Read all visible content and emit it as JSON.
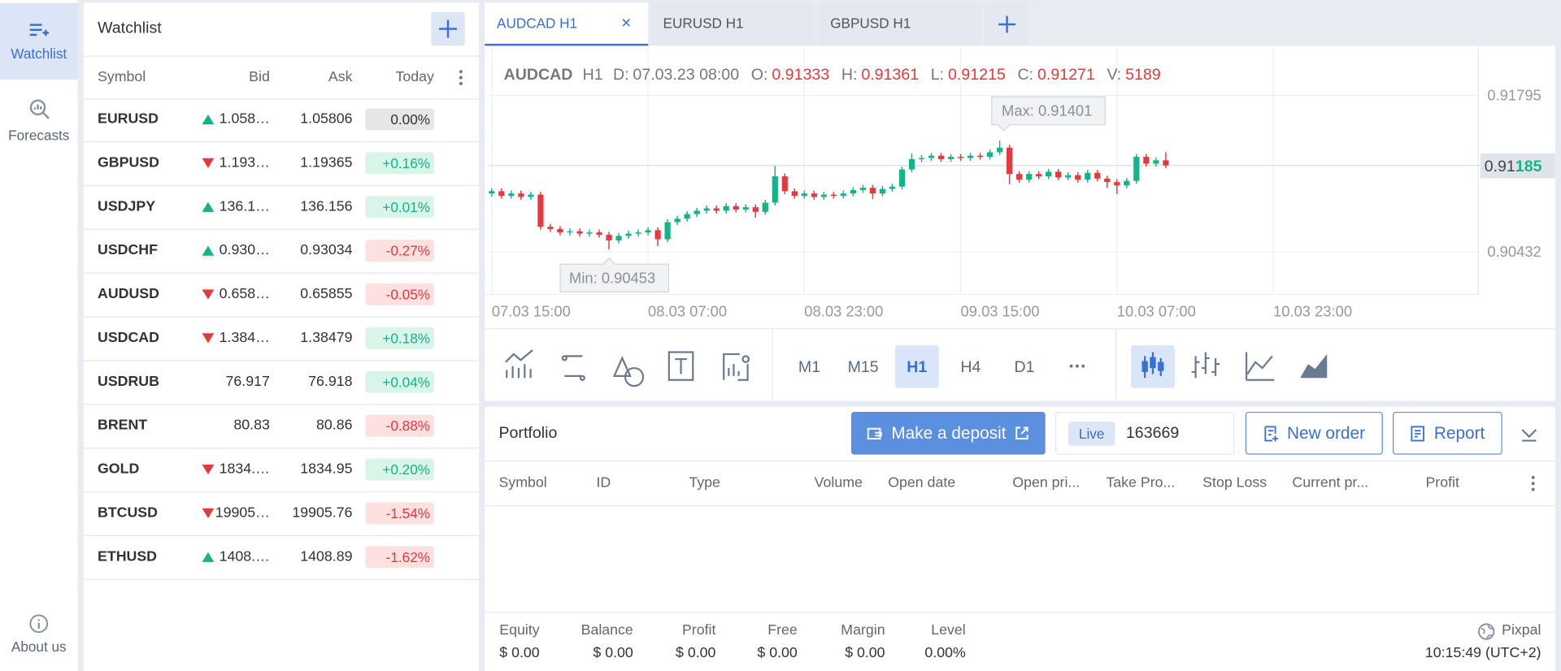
{
  "sidebar": {
    "items": [
      {
        "label": "Watchlist"
      },
      {
        "label": "Forecasts"
      },
      {
        "label": "About us"
      }
    ]
  },
  "watchlist": {
    "title": "Watchlist",
    "columns": [
      "Symbol",
      "Bid",
      "Ask",
      "Today"
    ],
    "rows": [
      {
        "symbol": "EURUSD",
        "tick": "up",
        "bid": "1.058…",
        "ask": "1.05806",
        "change": "0.00%",
        "trend": "flat"
      },
      {
        "symbol": "GBPUSD",
        "tick": "down",
        "bid": "1.193…",
        "ask": "1.19365",
        "change": "+0.16%",
        "trend": "up"
      },
      {
        "symbol": "USDJPY",
        "tick": "up",
        "bid": "136.1…",
        "ask": "136.156",
        "change": "+0.01%",
        "trend": "up"
      },
      {
        "symbol": "USDCHF",
        "tick": "up",
        "bid": "0.930…",
        "ask": "0.93034",
        "change": "-0.27%",
        "trend": "down"
      },
      {
        "symbol": "AUDUSD",
        "tick": "down",
        "bid": "0.658…",
        "ask": "0.65855",
        "change": "-0.05%",
        "trend": "down"
      },
      {
        "symbol": "USDCAD",
        "tick": "down",
        "bid": "1.384…",
        "ask": "1.38479",
        "change": "+0.18%",
        "trend": "up"
      },
      {
        "symbol": "USDRUB",
        "bid": "76.917",
        "ask": "76.918",
        "change": "+0.04%",
        "trend": "up"
      },
      {
        "symbol": "BRENT",
        "bid": "80.83",
        "ask": "80.86",
        "change": "-0.88%",
        "trend": "down"
      },
      {
        "symbol": "GOLD",
        "tick": "down",
        "bid": "1834.…",
        "ask": "1834.95",
        "change": "+0.20%",
        "trend": "up"
      },
      {
        "symbol": "BTCUSD",
        "tick": "down",
        "bid": "19905…",
        "ask": "19905.76",
        "change": "-1.54%",
        "trend": "down"
      },
      {
        "symbol": "ETHUSD",
        "tick": "up",
        "bid": "1408.…",
        "ask": "1408.89",
        "change": "-1.62%",
        "trend": "down"
      }
    ]
  },
  "tabs": {
    "items": [
      "AUDCAD H1",
      "EURUSD H1",
      "GBPUSD H1"
    ],
    "active": 0
  },
  "chart": {
    "type": "candlestick",
    "symbol": "AUDCAD",
    "timeframe": "H1",
    "info": [
      {
        "key": "D:",
        "value": "07.03.23 08:00"
      },
      {
        "key": "O:",
        "value": 0.91333
      },
      {
        "key": "H:",
        "value": 0.91361
      },
      {
        "key": "L:",
        "value": 0.91215
      },
      {
        "key": "C:",
        "value": 0.91271
      },
      {
        "key": "V:",
        "value": 5189
      }
    ],
    "xlim": [
      -0.3,
      101
    ],
    "ylim": [
      0.90059,
      0.92212
    ],
    "xticks": [
      {
        "value": 0,
        "label": "07.03 15:00"
      },
      {
        "value": 16,
        "label": "08.03 07:00"
      },
      {
        "value": 32,
        "label": "08.03 23:00"
      },
      {
        "value": 48,
        "label": "09.03 15:00"
      },
      {
        "value": 64,
        "label": "10.03 07:00"
      },
      {
        "value": 80,
        "label": "10.03 23:00"
      }
    ],
    "yticks": [
      0.91795,
      0.90432
    ],
    "max": {
      "value": 0.91401,
      "label": "Max: 0.91401"
    },
    "min": {
      "value": 0.90453,
      "label": "Min: 0.90453"
    },
    "current_price": {
      "value": 0.91185,
      "label": [
        "0.91",
        "185"
      ]
    },
    "up_color": "#16b38a",
    "down_color": "#e5393f",
    "candles": [
      [
        0.9094,
        0.90985,
        0.90915,
        0.9096
      ],
      [
        0.9096,
        0.90985,
        0.90895,
        0.9092
      ],
      [
        0.9092,
        0.90965,
        0.90895,
        0.9094
      ],
      [
        0.9094,
        0.90965,
        0.90885,
        0.9091
      ],
      [
        0.9091,
        0.90955,
        0.90885,
        0.9093
      ],
      [
        0.9093,
        0.90955,
        0.90625,
        0.9065
      ],
      [
        0.9065,
        0.90675,
        0.90605,
        0.9063
      ],
      [
        0.9063,
        0.90655,
        0.90575,
        0.906
      ],
      [
        0.906,
        0.90635,
        0.90575,
        0.9061
      ],
      [
        0.9061,
        0.90635,
        0.90565,
        0.9059
      ],
      [
        0.9059,
        0.90625,
        0.90565,
        0.906
      ],
      [
        0.906,
        0.90625,
        0.90555,
        0.9058
      ],
      [
        0.9058,
        0.90605,
        0.90453,
        0.9053
      ],
      [
        0.9053,
        0.90595,
        0.90505,
        0.9057
      ],
      [
        0.9057,
        0.90615,
        0.90545,
        0.9059
      ],
      [
        0.9059,
        0.90625,
        0.90565,
        0.906
      ],
      [
        0.906,
        0.90645,
        0.90575,
        0.9062
      ],
      [
        0.9062,
        0.90645,
        0.9048,
        0.9054
      ],
      [
        0.9054,
        0.90715,
        0.90515,
        0.9069
      ],
      [
        0.9069,
        0.90745,
        0.90665,
        0.9072
      ],
      [
        0.9072,
        0.90785,
        0.90695,
        0.9076
      ],
      [
        0.9076,
        0.90815,
        0.90735,
        0.9079
      ],
      [
        0.9079,
        0.90835,
        0.90765,
        0.9081
      ],
      [
        0.9081,
        0.90835,
        0.90765,
        0.9079
      ],
      [
        0.9079,
        0.90855,
        0.90765,
        0.9083
      ],
      [
        0.9083,
        0.90855,
        0.90775,
        0.908
      ],
      [
        0.908,
        0.90845,
        0.90775,
        0.9082
      ],
      [
        0.9082,
        0.90845,
        0.9073,
        0.9078
      ],
      [
        0.9078,
        0.90885,
        0.90755,
        0.9086
      ],
      [
        0.9086,
        0.9118,
        0.90835,
        0.9109
      ],
      [
        0.9109,
        0.91115,
        0.90935,
        0.9096
      ],
      [
        0.9096,
        0.90985,
        0.90895,
        0.9092
      ],
      [
        0.9092,
        0.90965,
        0.90895,
        0.9094
      ],
      [
        0.9094,
        0.90965,
        0.90885,
        0.9091
      ],
      [
        0.9091,
        0.90955,
        0.90885,
        0.9093
      ],
      [
        0.9093,
        0.90955,
        0.90895,
        0.9092
      ],
      [
        0.9092,
        0.90965,
        0.90895,
        0.9094
      ],
      [
        0.9094,
        0.90995,
        0.90915,
        0.9097
      ],
      [
        0.9097,
        0.91015,
        0.90945,
        0.9099
      ],
      [
        0.9099,
        0.91015,
        0.9089,
        0.9094
      ],
      [
        0.9094,
        0.91005,
        0.90915,
        0.9098
      ],
      [
        0.9098,
        0.91025,
        0.90955,
        0.91
      ],
      [
        0.91,
        0.91175,
        0.90975,
        0.9115
      ],
      [
        0.9115,
        0.9129,
        0.91125,
        0.9124
      ],
      [
        0.9124,
        0.91275,
        0.91215,
        0.9125
      ],
      [
        0.9125,
        0.91295,
        0.91225,
        0.9127
      ],
      [
        0.9127,
        0.91295,
        0.91215,
        0.9124
      ],
      [
        0.9124,
        0.91285,
        0.91215,
        0.9126
      ],
      [
        0.9126,
        0.91285,
        0.91225,
        0.9125
      ],
      [
        0.9125,
        0.91295,
        0.91225,
        0.9127
      ],
      [
        0.9127,
        0.91295,
        0.91235,
        0.9126
      ],
      [
        0.9126,
        0.91325,
        0.91235,
        0.913
      ],
      [
        0.913,
        0.91401,
        0.91275,
        0.9134
      ],
      [
        0.9134,
        0.91365,
        0.9102,
        0.9111
      ],
      [
        0.9111,
        0.91135,
        0.91035,
        0.9106
      ],
      [
        0.9106,
        0.91135,
        0.91035,
        0.9111
      ],
      [
        0.9111,
        0.91135,
        0.91065,
        0.9109
      ],
      [
        0.9109,
        0.91155,
        0.91065,
        0.9113
      ],
      [
        0.9113,
        0.91155,
        0.91055,
        0.9108
      ],
      [
        0.9108,
        0.91125,
        0.91055,
        0.911
      ],
      [
        0.911,
        0.91125,
        0.91035,
        0.9106
      ],
      [
        0.9106,
        0.91145,
        0.91035,
        0.9112
      ],
      [
        0.9112,
        0.91145,
        0.91045,
        0.9107
      ],
      [
        0.9107,
        0.91095,
        0.9099,
        0.9104
      ],
      [
        0.9104,
        0.91065,
        0.90935,
        0.9101
      ],
      [
        0.9101,
        0.91075,
        0.90985,
        0.9105
      ],
      [
        0.9105,
        0.91285,
        0.91025,
        0.9126
      ],
      [
        0.9126,
        0.91285,
        0.91175,
        0.912
      ],
      [
        0.912,
        0.91255,
        0.91175,
        0.9123
      ],
      [
        0.9123,
        0.913,
        0.9116,
        0.91185
      ]
    ]
  },
  "toolbar": {
    "timeframes": [
      "M1",
      "M15",
      "H1",
      "H4",
      "D1"
    ],
    "active_timeframe": 2
  },
  "portfolio": {
    "title": "Portfolio",
    "deposit": "Make a deposit",
    "account_type": "Live",
    "account": "163669",
    "new_order": "New order",
    "report": "Report",
    "columns": [
      "Symbol",
      "ID",
      "Type",
      "Volume",
      "Open date",
      "Open pri...",
      "Take Pro...",
      "Stop Loss",
      "Current pr...",
      "Profit"
    ],
    "stats": [
      {
        "label": "Equity",
        "value": "$ 0.00"
      },
      {
        "label": "Balance",
        "value": "$ 0.00"
      },
      {
        "label": "Profit",
        "value": "$ 0.00"
      },
      {
        "label": "Free",
        "value": "$ 0.00"
      },
      {
        "label": "Margin",
        "value": "$ 0.00"
      },
      {
        "label": "Level",
        "value": "0.00%"
      }
    ],
    "brand": "Pixpal",
    "time": "10:15:49 (UTC+2)"
  }
}
